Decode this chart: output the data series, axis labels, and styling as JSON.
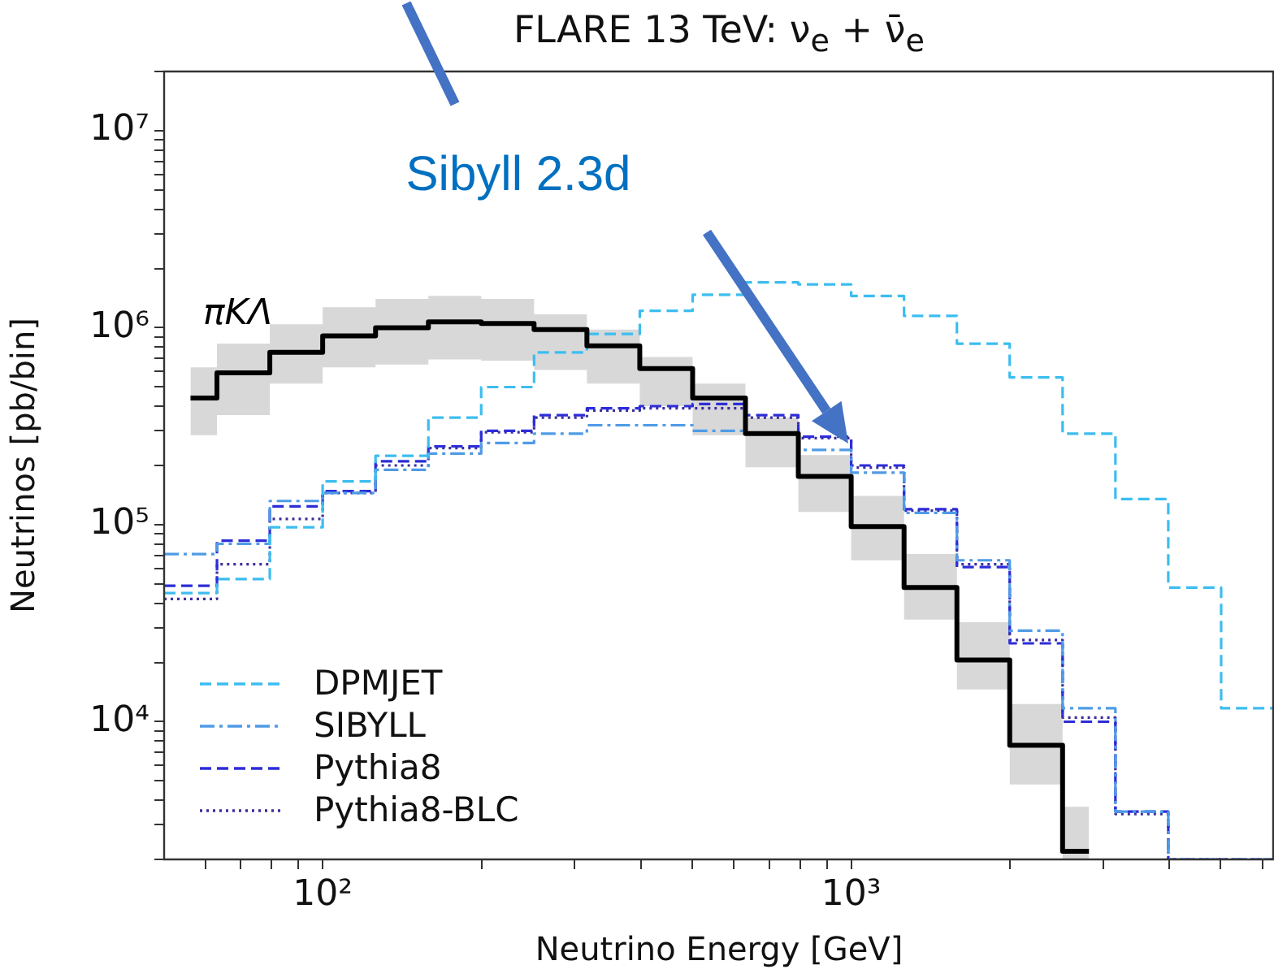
{
  "chart_data": {
    "type": "histogram",
    "title": "FLARE 13 TeV: ν$_{e}$ + ν̄$_{e}$",
    "xlabel": "Neutrino Energy [GeV]",
    "ylabel": "Neutrinos [pb/bin]",
    "bins": [
      50.12,
      63.1,
      79.43,
      100,
      125.9,
      158.5,
      199.5,
      251.2,
      316.2,
      398.1,
      501.2,
      631,
      794.3,
      1000,
      1259,
      1585,
      1995,
      2512,
      3162,
      3981,
      5012,
      6310
    ],
    "series": [
      {
        "name": "πKΛ",
        "type": "step",
        "x": [
          56.23,
          70.79,
          89.13,
          112.2,
          141.3,
          177.8,
          223.9,
          281.8,
          354.8,
          446.7,
          562.3,
          707.9,
          891.3,
          1122,
          1413,
          1778,
          2239,
          2818
        ],
        "color": "#000000",
        "line_style": "solid",
        "values": [
          440000,
          590000,
          750000,
          910000,
          1000000,
          1070000,
          1050000,
          980000,
          810000,
          620000,
          440000,
          290000,
          176000,
          98000,
          48000,
          20600,
          7600,
          2200
        ],
        "lower": [
          285000,
          360000,
          520000,
          630000,
          650000,
          690000,
          680000,
          610000,
          520000,
          400000,
          285000,
          196000,
          116000,
          66000,
          33000,
          14600,
          4800,
          2000
        ],
        "upper": [
          630000,
          830000,
          1040000,
          1270000,
          1400000,
          1450000,
          1400000,
          1170000,
          980000,
          710000,
          520000,
          350000,
          226000,
          140000,
          71000,
          32000,
          12300,
          3700
        ]
      },
      {
        "name": "DPMJET",
        "color": "#3cbdf0",
        "line_style": "dashed",
        "values": [
          45000,
          53000,
          97000,
          166000,
          224000,
          350000,
          500000,
          750000,
          930000,
          1220000,
          1470000,
          1700000,
          1660000,
          1450000,
          1150000,
          830000,
          560000,
          290000,
          135000,
          48000,
          11700
        ]
      },
      {
        "name": "SIBYLL",
        "color": "#4f9be6",
        "line_style": "dashdot",
        "values": [
          71000,
          80000,
          132000,
          145000,
          190000,
          230000,
          260000,
          290000,
          320000,
          320000,
          300000,
          290000,
          240000,
          184000,
          115000,
          66000,
          29000,
          11700,
          3500,
          null,
          null
        ]
      },
      {
        "name": "Pythia8",
        "color": "#2d2dd8",
        "line_style": "dashed",
        "values": [
          49000,
          83000,
          124000,
          148000,
          210000,
          250000,
          300000,
          360000,
          390000,
          400000,
          410000,
          360000,
          280000,
          200000,
          120000,
          61000,
          25000,
          10000,
          3500,
          null,
          null
        ]
      },
      {
        "name": "Pythia8-BLC",
        "color": "#3b2f9c",
        "line_style": "dotted",
        "values": [
          42000,
          63000,
          107000,
          145000,
          200000,
          245000,
          295000,
          350000,
          380000,
          390000,
          390000,
          350000,
          275000,
          195000,
          118000,
          63000,
          26000,
          10500,
          3400,
          null,
          null
        ]
      }
    ],
    "log": "xy",
    "xlim": [
      50.12,
      6310
    ],
    "xticks": [
      {
        "value": 60,
        "label": null
      },
      {
        "value": 70,
        "label": null
      },
      {
        "value": 80,
        "label": null
      },
      {
        "value": 90,
        "label": null
      },
      {
        "value": 100,
        "label": "10²"
      },
      {
        "value": 200,
        "label": null
      },
      {
        "value": 300,
        "label": null
      },
      {
        "value": 400,
        "label": null
      },
      {
        "value": 500,
        "label": null
      },
      {
        "value": 600,
        "label": null
      },
      {
        "value": 700,
        "label": null
      },
      {
        "value": 800,
        "label": null
      },
      {
        "value": 900,
        "label": null
      },
      {
        "value": 1000,
        "label": "10³"
      },
      {
        "value": 2000,
        "label": null
      },
      {
        "value": 3000,
        "label": null
      },
      {
        "value": 4000,
        "label": null
      },
      {
        "value": 5000,
        "label": null
      },
      {
        "value": 6000,
        "label": null
      }
    ],
    "ylim": [
      2000,
      20000000
    ],
    "yticks": [
      {
        "value": 2000,
        "label": null
      },
      {
        "value": 3000,
        "label": null
      },
      {
        "value": 4000,
        "label": null
      },
      {
        "value": 5000,
        "label": null
      },
      {
        "value": 6000,
        "label": null
      },
      {
        "value": 7000,
        "label": null
      },
      {
        "value": 8000,
        "label": null
      },
      {
        "value": 9000,
        "label": null
      },
      {
        "value": 10000,
        "label": "10⁴"
      },
      {
        "value": 20000,
        "label": null
      },
      {
        "value": 30000,
        "label": null
      },
      {
        "value": 40000,
        "label": null
      },
      {
        "value": 50000,
        "label": null
      },
      {
        "value": 60000,
        "label": null
      },
      {
        "value": 70000,
        "label": null
      },
      {
        "value": 80000,
        "label": null
      },
      {
        "value": 90000,
        "label": null
      },
      {
        "value": 100000,
        "label": "10⁵"
      },
      {
        "value": 200000,
        "label": null
      },
      {
        "value": 300000,
        "label": null
      },
      {
        "value": 400000,
        "label": null
      },
      {
        "value": 500000,
        "label": null
      },
      {
        "value": 600000,
        "label": null
      },
      {
        "value": 700000,
        "label": null
      },
      {
        "value": 800000,
        "label": null
      },
      {
        "value": 900000,
        "label": null
      },
      {
        "value": 1000000,
        "label": "10⁶"
      },
      {
        "value": 2000000,
        "label": null
      },
      {
        "value": 3000000,
        "label": null
      },
      {
        "value": 4000000,
        "label": null
      },
      {
        "value": 5000000,
        "label": null
      },
      {
        "value": 6000000,
        "label": null
      },
      {
        "value": 7000000,
        "label": null
      },
      {
        "value": 8000000,
        "label": null
      },
      {
        "value": 9000000,
        "label": null
      },
      {
        "value": 10000000,
        "label": "10⁷"
      },
      {
        "value": 20000000,
        "label": null
      }
    ],
    "annotations": [
      "Sibyll 2.3d"
    ],
    "legend": "bottom left",
    "grid": false
  }
}
